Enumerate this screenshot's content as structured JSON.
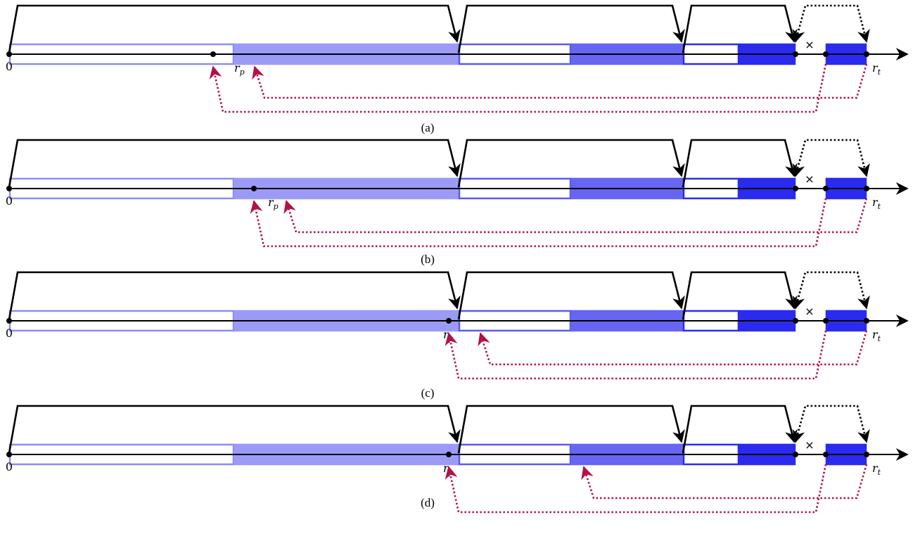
{
  "labels": {
    "origin": "0",
    "rp_main": "r",
    "rp_sub": "p",
    "rt_main": "r",
    "rt_sub": "t",
    "cross": "×"
  },
  "colors": {
    "light_blue_outline": "#8c8cf5",
    "light_blue_fill": "#9b9bf7",
    "mid_blue_fill": "#6666f2",
    "dark_blue_outline": "#2b2bf0",
    "dark_blue_fill": "#2b2bf0",
    "axis": "#000000",
    "dotted_arrow": "#b3104b",
    "jump_dotted": "#000000"
  },
  "panels": [
    {
      "caption": "(a)",
      "rp_position": 303,
      "red_arrows": [
        {
          "from": 1174,
          "to": 303,
          "depth": 2
        },
        {
          "from": 1232,
          "to": 362,
          "depth": 1
        }
      ]
    },
    {
      "caption": "(b)",
      "rp_position": 361,
      "red_arrows": [
        {
          "from": 1174,
          "to": 361,
          "depth": 2
        },
        {
          "from": 1232,
          "to": 407,
          "depth": 1
        }
      ]
    },
    {
      "caption": "(c)",
      "rp_position": 638,
      "red_arrows": [
        {
          "from": 1174,
          "to": 638,
          "depth": 2
        },
        {
          "from": 1232,
          "to": 683,
          "depth": 1
        }
      ]
    },
    {
      "caption": "(d)",
      "rp_position": 638,
      "red_arrows": [
        {
          "from": 1174,
          "to": 638,
          "depth": 2
        },
        {
          "from": 1232,
          "to": 830,
          "depth": 1
        }
      ]
    }
  ]
}
